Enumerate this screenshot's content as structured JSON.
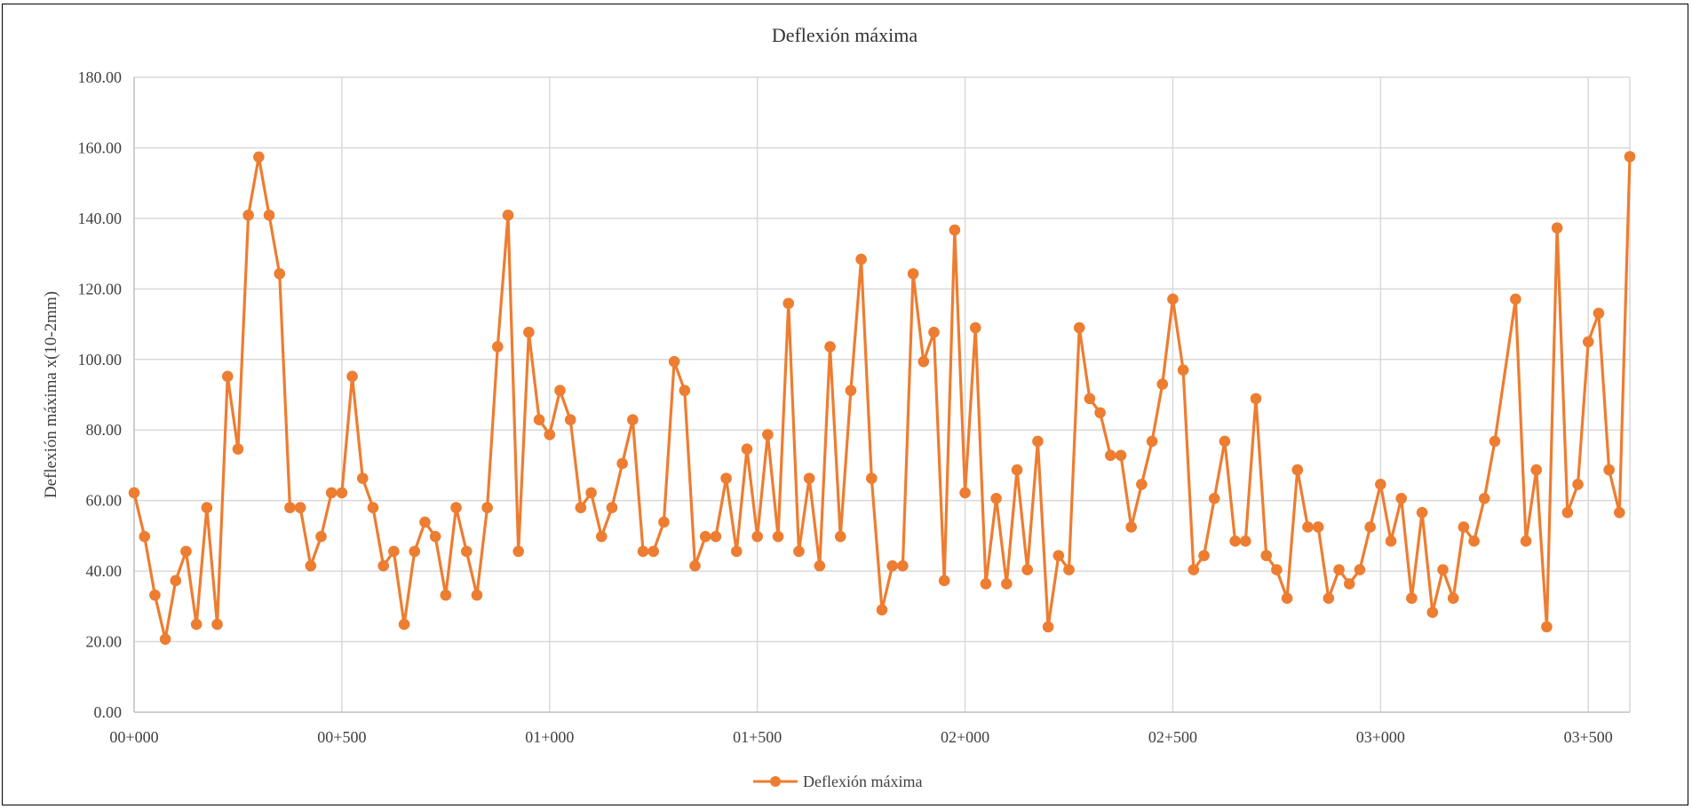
{
  "chart_data": {
    "type": "line",
    "title": "Deflexión máxima",
    "xlabel": "",
    "ylabel": "Deflexión máxima x(10-2mm)",
    "ylim": [
      0,
      180
    ],
    "yticks": [
      "0.00",
      "20.00",
      "40.00",
      "60.00",
      "80.00",
      "100.00",
      "120.00",
      "140.00",
      "160.00",
      "180.00"
    ],
    "xlim": [
      0,
      3600
    ],
    "xticks": [
      "00+000",
      "00+500",
      "01+000",
      "01+500",
      "02+000",
      "02+500",
      "03+000",
      "03+500"
    ],
    "grid": true,
    "legend": "bottom",
    "colors": {
      "series": "#ED7D31",
      "grid": "#d9d9d9",
      "axis": "#bfbfbf"
    },
    "series": [
      {
        "name": "Deflexión máxima",
        "x": [
          0,
          25,
          50,
          75,
          100,
          125,
          150,
          175,
          200,
          225,
          250,
          275,
          300,
          325,
          350,
          375,
          400,
          425,
          450,
          475,
          500,
          525,
          550,
          575,
          600,
          625,
          650,
          675,
          700,
          725,
          750,
          775,
          800,
          825,
          850,
          875,
          900,
          925,
          950,
          975,
          1000,
          1025,
          1050,
          1075,
          1100,
          1125,
          1150,
          1175,
          1200,
          1225,
          1250,
          1275,
          1300,
          1325,
          1350,
          1375,
          1400,
          1425,
          1450,
          1475,
          1500,
          1525,
          1550,
          1575,
          1600,
          1625,
          1650,
          1675,
          1700,
          1725,
          1750,
          1775,
          1800,
          1825,
          1850,
          1875,
          1900,
          1925,
          1950,
          1975,
          2000,
          2025,
          2050,
          2075,
          2100,
          2125,
          2150,
          2175,
          2200,
          2225,
          2250,
          2275,
          2300,
          2325,
          2350,
          2375,
          2400,
          2425,
          2450,
          2475,
          2500,
          2525,
          2550,
          2575,
          2600,
          2625,
          2650,
          2675,
          2700,
          2725,
          2750,
          2775,
          2800,
          2825,
          2850,
          2875,
          2900,
          2925,
          2950,
          2975,
          3000,
          3025,
          3050,
          3075,
          3100,
          3125,
          3150,
          3175,
          3200,
          3225,
          3250,
          3275,
          3325,
          3350,
          3375,
          3400,
          3425,
          3450,
          3475,
          3500,
          3525,
          3550,
          3575,
          3600
        ],
        "values": [
          62.2,
          49.8,
          33.2,
          20.7,
          37.3,
          45.6,
          24.9,
          58.0,
          24.9,
          95.2,
          74.6,
          140.9,
          157.4,
          140.9,
          124.3,
          58.0,
          58.0,
          41.5,
          49.8,
          62.2,
          62.2,
          95.2,
          66.3,
          58.0,
          41.5,
          45.6,
          24.9,
          45.6,
          53.9,
          49.8,
          33.2,
          58.0,
          45.6,
          33.2,
          58.0,
          103.6,
          140.9,
          45.6,
          107.7,
          82.9,
          78.7,
          91.2,
          82.9,
          58.0,
          62.2,
          49.8,
          58.0,
          70.5,
          82.9,
          45.6,
          45.6,
          53.9,
          99.4,
          91.2,
          41.5,
          49.8,
          49.8,
          66.3,
          45.6,
          74.6,
          49.8,
          78.7,
          49.8,
          115.9,
          45.6,
          66.3,
          41.5,
          103.6,
          49.8,
          91.2,
          128.4,
          66.3,
          29.0,
          41.5,
          41.5,
          124.3,
          99.4,
          107.7,
          37.3,
          136.7,
          62.2,
          109.0,
          36.4,
          60.6,
          36.4,
          68.7,
          40.4,
          76.8,
          24.2,
          44.4,
          40.4,
          109.0,
          88.9,
          84.9,
          72.8,
          72.8,
          52.5,
          64.6,
          76.8,
          93.0,
          117.1,
          97.0,
          40.4,
          44.4,
          60.6,
          76.8,
          48.5,
          48.5,
          88.9,
          44.4,
          40.4,
          32.3,
          68.7,
          52.5,
          52.5,
          32.3,
          40.4,
          36.4,
          40.4,
          52.5,
          64.6,
          48.5,
          60.6,
          32.3,
          56.6,
          28.3,
          40.4,
          32.3,
          52.5,
          48.5,
          60.6,
          76.8,
          117.1,
          48.5,
          68.7,
          24.2,
          137.3,
          56.6,
          64.6,
          105.0,
          113.1,
          68.7,
          56.6,
          157.5
        ]
      }
    ]
  }
}
